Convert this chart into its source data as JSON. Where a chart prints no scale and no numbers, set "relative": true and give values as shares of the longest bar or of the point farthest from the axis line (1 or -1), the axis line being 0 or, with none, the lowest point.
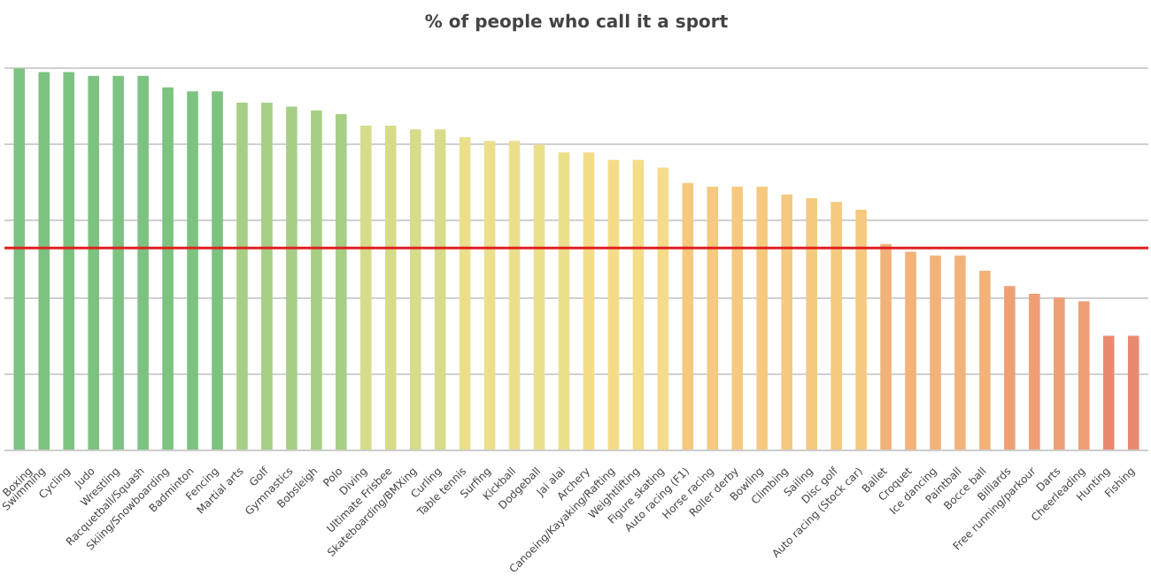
{
  "chart_data": {
    "type": "bar",
    "title": "% of people who call it a sport",
    "relative": true,
    "grid": "y",
    "categories": [
      "Boxing",
      "Swimming",
      "Cycling",
      "Judo",
      "Wrestling",
      "Racquetball/Squash",
      "Skiing/Snowboarding",
      "Badminton",
      "Fencing",
      "Martial arts",
      "Golf",
      "Gymnastics",
      "Bobsleigh",
      "Polo",
      "Diving",
      "Ultimate Frisbee",
      "Skateboarding/BMXing",
      "Curling",
      "Table tennis",
      "Surfing",
      "Kickball",
      "Dodgeball",
      "Jai alai",
      "Archery",
      "Canoeing/Kayaking/Rafting",
      "Weightlifting",
      "Figure skating",
      "Auto racing (F1)",
      "Horse racing",
      "Roller derby",
      "Bowling",
      "Climbing",
      "Sailing",
      "Disc golf",
      "Auto racing (Stock car)",
      "Ballet",
      "Croquet",
      "Ice dancing",
      "Paintball",
      "Bocce ball",
      "Billiards",
      "Free running/parkour",
      "Darts",
      "Cheerleading",
      "Hunting",
      "Fishing"
    ],
    "values": [
      1,
      0.99,
      0.99,
      0.98,
      0.98,
      0.98,
      0.95,
      0.94,
      0.94,
      0.91,
      0.91,
      0.9,
      0.89,
      0.88,
      0.85,
      0.85,
      0.84,
      0.84,
      0.82,
      0.81,
      0.81,
      0.8,
      0.78,
      0.78,
      0.76,
      0.76,
      0.74,
      0.7,
      0.69,
      0.69,
      0.69,
      0.67,
      0.66,
      0.65,
      0.63,
      0.54,
      0.52,
      0.51,
      0.51,
      0.47,
      0.43,
      0.41,
      0.4,
      0.39,
      0.3,
      0.3
    ],
    "colors": [
      "#7cc281",
      "#7cc281",
      "#7cc281",
      "#7cc281",
      "#7cc281",
      "#7cc281",
      "#7cc281",
      "#7cc281",
      "#7cc281",
      "#a6cf85",
      "#a6cf85",
      "#a6cf85",
      "#a6cf85",
      "#a6cf85",
      "#d6dc8a",
      "#d6dc8a",
      "#d6dc8a",
      "#d6dc8a",
      "#ecdf8c",
      "#ecdf8c",
      "#ecdf8c",
      "#ecdf8c",
      "#ecdf8c",
      "#f5dc88",
      "#f5dc88",
      "#f5dc88",
      "#f5dc88",
      "#f5c97f",
      "#f5c97f",
      "#f5c97f",
      "#f5c97f",
      "#f5c97f",
      "#f5c97f",
      "#f5c97f",
      "#f5c97f",
      "#f2b27a",
      "#f2b27a",
      "#f2b27a",
      "#f2b27a",
      "#f2b27a",
      "#ee9f75",
      "#ee9f75",
      "#ee9f75",
      "#ee9f75",
      "#e98a70",
      "#e98a70"
    ],
    "ref_lines": [
      {
        "axis": "y",
        "value": 0.53,
        "color": "#e02020"
      }
    ]
  }
}
